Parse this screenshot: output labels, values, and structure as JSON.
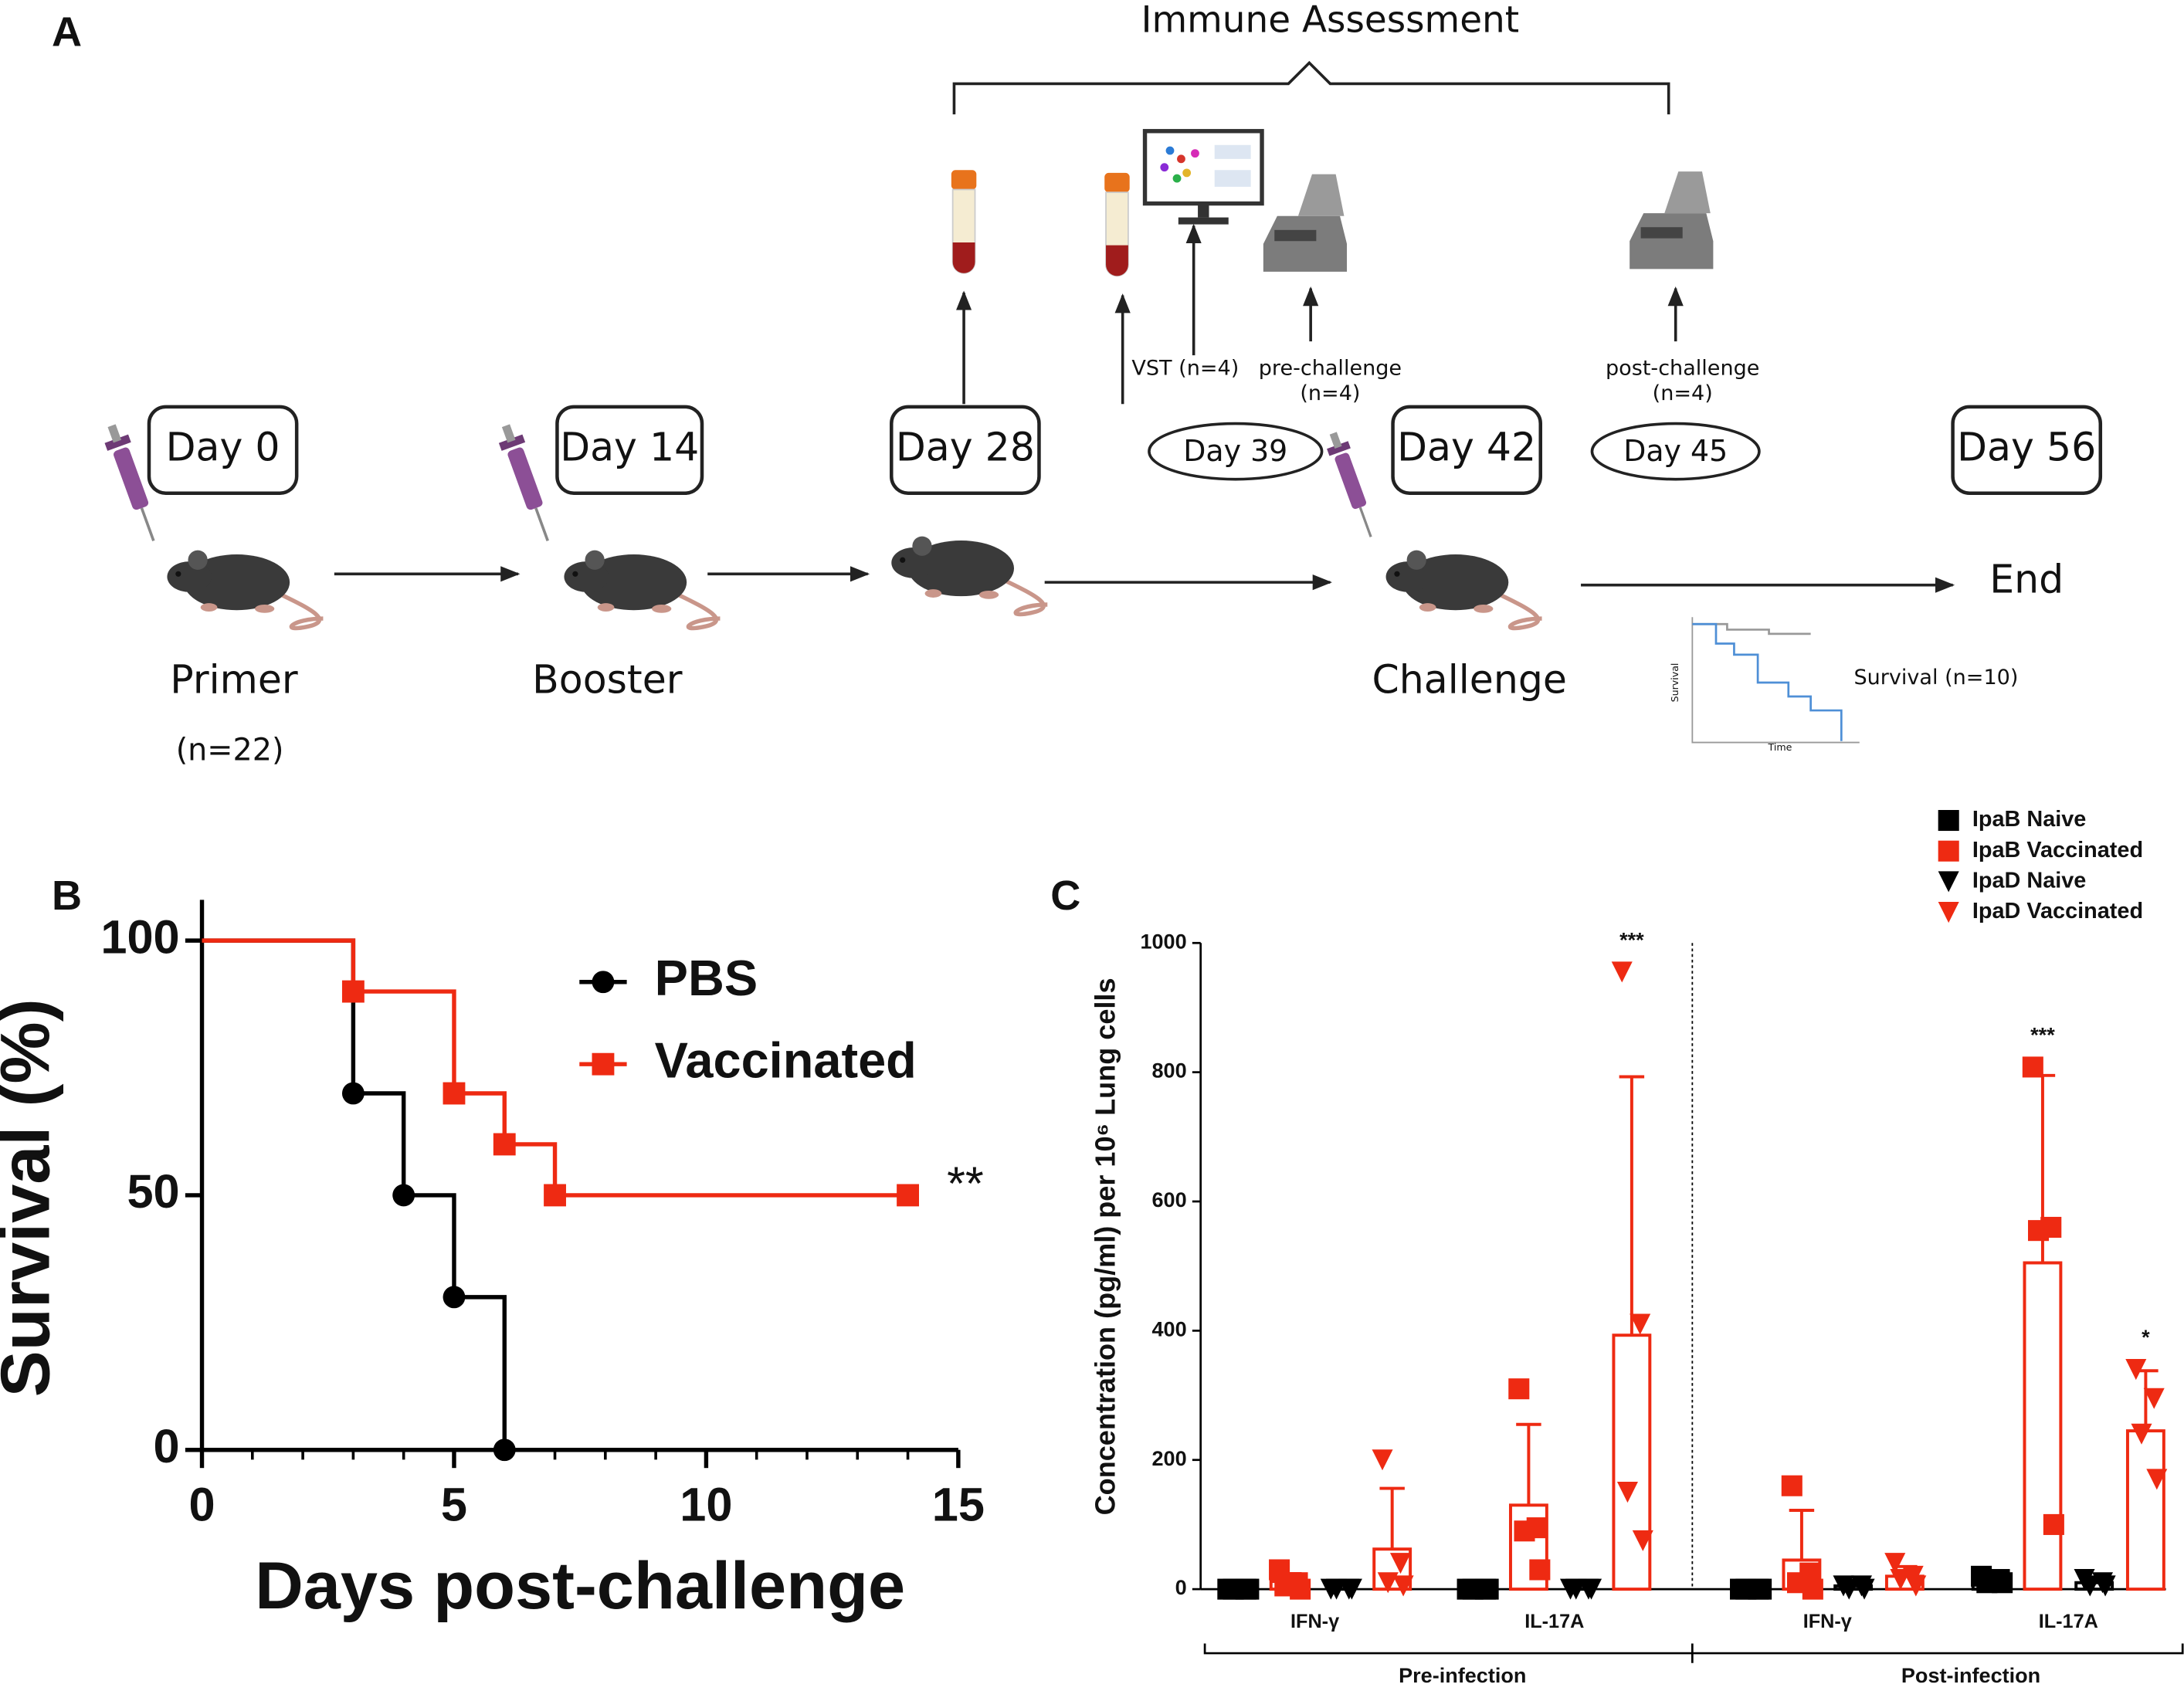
{
  "panel_labels": [
    "A",
    "B",
    "C"
  ],
  "diagram": {
    "title": "Immune Assessment",
    "days": [
      "Day 0",
      "Day 14",
      "Day 28",
      "Day 39",
      "Day 42",
      "Day 45",
      "Day 56"
    ],
    "stages": [
      "Primer",
      "Booster",
      "Challenge",
      "End"
    ],
    "primer_n": "(n=22)",
    "assays": [
      "VST (n=4)",
      "pre-challenge",
      "(n=4)",
      "post-challenge",
      "(n=4)"
    ],
    "survival_inset": {
      "label": "Survival (n=10)",
      "ylabel": "Survival",
      "xlabel": "Time"
    }
  },
  "chart_data": [
    {
      "type": "line",
      "step": true,
      "xlabel": "Days post-challenge",
      "ylabel": "Survival (%)",
      "xlim": [
        0,
        15
      ],
      "ylim": [
        0,
        108
      ],
      "xticks": [
        0,
        5,
        10,
        15
      ],
      "xminorticks": [
        0,
        1,
        2,
        3,
        4,
        5,
        6,
        7,
        8,
        9,
        10,
        11,
        12,
        13,
        14,
        15
      ],
      "yticks": [
        0,
        50,
        100
      ],
      "legend": "upper right",
      "series": [
        {
          "name": "PBS",
          "color": "#000000",
          "marker": "circle",
          "x": [
            0,
            3,
            4,
            5,
            6
          ],
          "values": [
            100,
            70,
            50,
            30,
            0
          ]
        },
        {
          "name": "Vaccinated",
          "color": "#ee2a12",
          "marker": "square",
          "x": [
            0,
            3,
            5,
            6,
            7,
            14
          ],
          "values": [
            100,
            90,
            70,
            60,
            50,
            50
          ],
          "annotation": "**"
        }
      ]
    },
    {
      "type": "bar",
      "ylabel": "Concentration (pg/ml) per 10⁶ Lung cells",
      "ylim": [
        0,
        1000
      ],
      "yticks": [
        0,
        200,
        400,
        600,
        800,
        1000
      ],
      "categories": [
        "IFN-γ",
        "IL-17A",
        "IFN-γ",
        "IL-17A"
      ],
      "groups": [
        "Pre-infection",
        "Post-infection"
      ],
      "divider": "dotted",
      "legend": "upper right",
      "series": [
        {
          "name": "IpaB Naive",
          "color": "#000000",
          "marker": "square",
          "values": [
            0,
            0,
            0,
            15
          ],
          "errors": [
            0,
            0,
            0,
            5
          ],
          "points": [
            [
              0,
              0,
              0,
              0
            ],
            [
              0,
              0,
              0,
              0
            ],
            [
              0,
              0,
              0,
              0
            ],
            [
              20,
              15,
              10,
              10
            ]
          ]
        },
        {
          "name": "IpaB Vaccinated",
          "color": "#ee2a12",
          "marker": "square",
          "values": [
            12,
            130,
            45,
            505
          ],
          "errors": [
            12,
            125,
            77,
            290
          ],
          "points": [
            [
              30,
              10,
              5,
              0
            ],
            [
              310,
              95,
              90,
              30
            ],
            [
              160,
              25,
              10,
              0
            ],
            [
              808,
              560,
              555,
              100
            ]
          ],
          "significance": [
            null,
            null,
            null,
            "***"
          ]
        },
        {
          "name": "IpaD Naive",
          "color": "#000000",
          "marker": "triangle",
          "values": [
            0,
            0,
            5,
            10
          ],
          "errors": [
            0,
            0,
            3,
            4
          ],
          "points": [
            [
              0,
              0,
              0,
              0
            ],
            [
              0,
              0,
              0,
              0
            ],
            [
              5,
              5,
              0,
              0
            ],
            [
              15,
              10,
              5,
              5
            ]
          ]
        },
        {
          "name": "IpaD Vaccinated",
          "color": "#ee2a12",
          "marker": "triangle",
          "values": [
            62,
            393,
            20,
            245
          ],
          "errors": [
            94,
            400,
            15,
            93
          ],
          "points": [
            [
              200,
              40,
              10,
              5
            ],
            [
              955,
              410,
              150,
              75
            ],
            [
              40,
              20,
              15,
              5
            ],
            [
              340,
              295,
              240,
              170
            ]
          ],
          "significance": [
            null,
            "***",
            null,
            "*"
          ]
        }
      ]
    }
  ]
}
